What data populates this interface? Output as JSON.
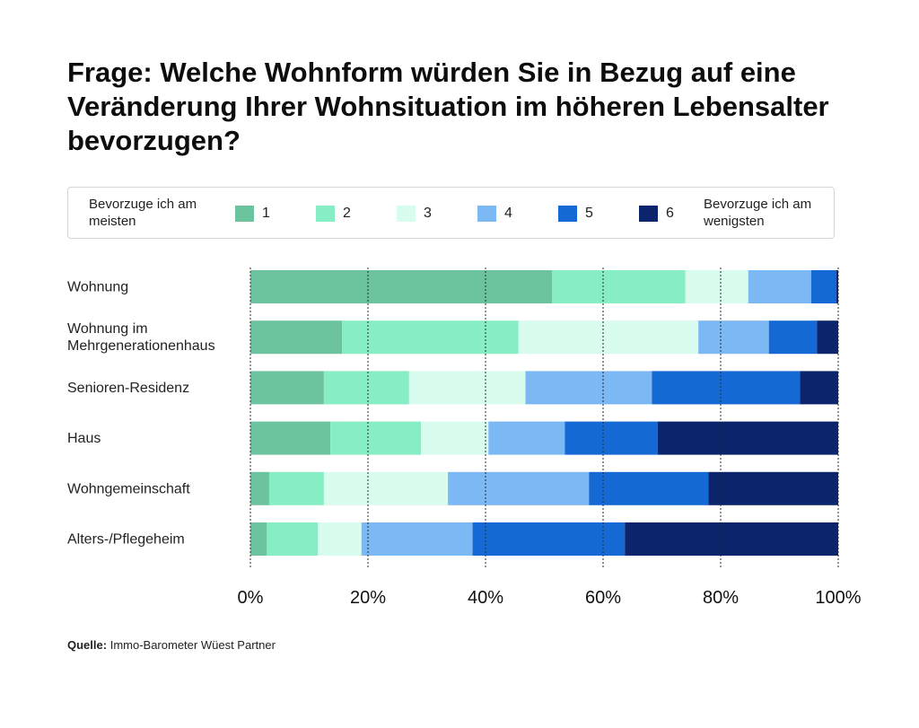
{
  "chart_data": {
    "type": "bar",
    "orientation": "horizontal",
    "stacked": true,
    "title": "Frage: Welche Wohnform würden Sie in Bezug auf eine Veränderung Ihrer Wohnsituation im höheren Lebensalter bevorzugen?",
    "legend_left_label": "Bevorzuge ich am meisten",
    "legend_right_label": "Bevorzuge ich am wenigsten",
    "legend_placement": "top",
    "xlim": [
      0,
      100
    ],
    "x_ticks": [
      "0%",
      "20%",
      "40%",
      "60%",
      "80%",
      "100%"
    ],
    "grid": true,
    "categories": [
      [
        "Wohnung"
      ],
      [
        "Wohnung im",
        "Mehrgenerationenhaus"
      ],
      [
        "Senioren-Residenz"
      ],
      [
        "Haus"
      ],
      [
        "Wohngemeinschaft"
      ],
      [
        "Alters-/Pflegeheim"
      ]
    ],
    "series": [
      {
        "name": "1",
        "color": "#6cc49f",
        "values": [
          51.3,
          15.6,
          12.5,
          13.6,
          3.2,
          2.8
        ]
      },
      {
        "name": "2",
        "color": "#86edc4",
        "values": [
          22.7,
          30.0,
          14.5,
          15.4,
          9.3,
          8.7
        ]
      },
      {
        "name": "3",
        "color": "#d8fcee",
        "values": [
          10.7,
          30.6,
          19.8,
          11.5,
          21.1,
          7.4
        ]
      },
      {
        "name": "4",
        "color": "#7cb8f3",
        "values": [
          10.7,
          12.0,
          21.5,
          13.0,
          24.0,
          18.9
        ]
      },
      {
        "name": "5",
        "color": "#1469d4",
        "values": [
          4.3,
          8.2,
          25.2,
          15.8,
          20.3,
          25.9
        ]
      },
      {
        "name": "6",
        "color": "#0b246b",
        "values": [
          0.3,
          3.6,
          6.5,
          30.7,
          22.1,
          36.3
        ]
      }
    ]
  },
  "source_label": "Quelle:",
  "source_text": "Immo-Barometer Wüest Partner"
}
